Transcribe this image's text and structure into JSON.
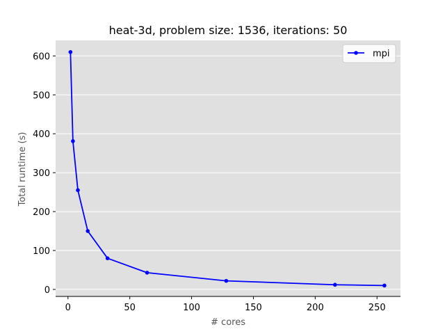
{
  "chart_data": {
    "type": "line",
    "title": "heat-3d, problem size: 1536, iterations: 50",
    "xlabel": "# cores",
    "ylabel": "Total runtime (s)",
    "xlim": [
      -10,
      269
    ],
    "ylim": [
      -18,
      640
    ],
    "xticks": [
      0,
      50,
      100,
      150,
      200,
      250
    ],
    "yticks": [
      0,
      100,
      200,
      300,
      400,
      500,
      600
    ],
    "grid": "horizontal",
    "legend_position": "top-right",
    "series": [
      {
        "name": "mpi",
        "color": "#0000ff",
        "marker": "circle",
        "x": [
          2,
          4,
          8,
          16,
          32,
          64,
          128,
          216,
          256
        ],
        "y": [
          610,
          381,
          255,
          150,
          80,
          43,
          22,
          12,
          10
        ]
      }
    ],
    "colors": {
      "plot_background": "#e0e0e0",
      "grid": "#ffffff",
      "axis_label": "#555555"
    }
  }
}
